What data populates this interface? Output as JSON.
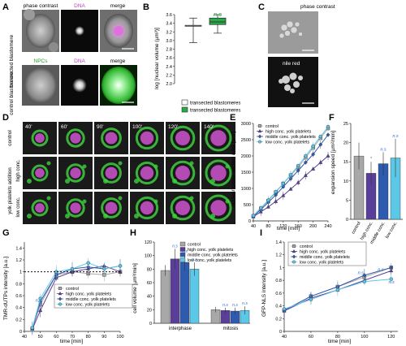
{
  "panel_letters": [
    "A",
    "B",
    "C",
    "D",
    "E",
    "F",
    "G",
    "H",
    "I"
  ],
  "colors": {
    "control": "#a8a8a8",
    "high": "#5a3f9a",
    "middle": "#2d5bb0",
    "low": "#5bc8e8",
    "green_box": "#2aa84a",
    "dna": "#d055d0",
    "gfp": "#3ecf3e",
    "sig": "#2b6fd0"
  },
  "panelA": {
    "col_headers": [
      "phase contrast",
      "DNA",
      "merge"
    ],
    "row2_headers": [
      "NPCs",
      "DNA",
      "merge"
    ],
    "row_labels": [
      "transected blastomere",
      "control blastomere"
    ]
  },
  "panelB": {
    "sig_label": "n.s",
    "legend": [
      "transected blastomeres",
      "transected blastomeres"
    ]
  },
  "panelC": {
    "labels": [
      "phase contrast",
      "nile red"
    ]
  },
  "panelD": {
    "times": [
      "40'",
      "60'",
      "90'",
      "100'",
      "120'",
      "140'"
    ],
    "row_labels": [
      "control",
      "high conc.",
      "low conc."
    ],
    "group_label": "yolk platelets addition"
  },
  "panelE": {
    "ylabel": "nuclear cross-section area [µm²]",
    "xlabel": "time [min]",
    "legend": [
      "control",
      "high conc. yolk platelets",
      "middle conc. yolk platelets",
      "low conc. yolk platelets"
    ]
  },
  "panelF": {
    "ylabel": "expansion speed [µm²/min]",
    "star": "*"
  },
  "panelG": {
    "ylabel": "TMR-dUTPs intensity [a.u.]",
    "xlabel": "time [min]",
    "legend": [
      "control",
      "high conc. yolk platelets",
      "middle conc. yolk platelets",
      "low conc. yolk platelets"
    ]
  },
  "panelH": {
    "ylabel": "cell volume [µm³/min]",
    "legend": [
      "control",
      "high conc. yolk platelets",
      "middle conc. yolk platelets",
      "low conc. yolk platelets"
    ]
  },
  "panelI": {
    "ylabel": "GFP-NLS intensity [a.u.]",
    "xlabel": "time [min]",
    "legend": [
      "control",
      "high conc. yolk platelets",
      "middle conc. yolk platelets",
      "low conc. yolk platelets"
    ]
  },
  "chart_data": [
    {
      "id": "B",
      "type": "box",
      "ylabel": "log [nuclear volume (µm³)]",
      "ylim": [
        2.0,
        3.6
      ],
      "yticks": [
        2.0,
        2.2,
        2.4,
        2.6,
        2.8,
        3.0,
        3.2,
        3.4,
        3.6
      ],
      "boxes": [
        {
          "min": 2.95,
          "q1": 3.35,
          "median": 3.35,
          "q3": 3.35,
          "max": 3.52
        },
        {
          "min": 3.17,
          "q1": 3.37,
          "median": 3.43,
          "q3": 3.52,
          "max": 3.6
        }
      ]
    },
    {
      "id": "E",
      "type": "line",
      "ylabel": "nuclear cross-section area [µm²]",
      "xlabel": "time [min]",
      "xlim": [
        40,
        240
      ],
      "xticks": [
        40,
        80,
        120,
        160,
        200,
        240
      ],
      "ylim": [
        0,
        3000
      ],
      "yticks": [
        0,
        500,
        1000,
        1500,
        2000,
        2500,
        3000
      ],
      "x": [
        40,
        60,
        80,
        100,
        120,
        140,
        160,
        180,
        200,
        220,
        240
      ],
      "series": [
        {
          "name": "control",
          "values": [
            150,
            380,
            620,
            880,
            1150,
            1400,
            1650,
            1950,
            2250,
            2550,
            2850
          ]
        },
        {
          "name": "high conc. yolk platelets",
          "values": [
            130,
            280,
            430,
            600,
            780,
            980,
            1180,
            1400,
            1600,
            1800,
            2000
          ]
        },
        {
          "name": "middle conc. yolk platelets",
          "values": [
            140,
            350,
            570,
            800,
            1050,
            1300,
            1550,
            1800,
            2050,
            2350,
            2650
          ]
        },
        {
          "name": "low conc. yolk platelets",
          "values": [
            160,
            400,
            640,
            900,
            1150,
            1420,
            1700,
            2000,
            2300,
            2600,
            2900
          ]
        }
      ]
    },
    {
      "id": "F",
      "type": "bar",
      "ylabel": "expansion speed [µm²/min]",
      "ylim": [
        0,
        25
      ],
      "yticks": [
        0,
        5,
        10,
        15,
        20,
        25
      ],
      "categories": [
        "control",
        "high conc.",
        "middle conc.",
        "low conc."
      ],
      "values": [
        16.5,
        12,
        14.5,
        16
      ],
      "errors": [
        3.5,
        3,
        3,
        5
      ],
      "labels": [
        "",
        "*",
        "n.s",
        "n.s"
      ]
    },
    {
      "id": "G",
      "type": "line",
      "ylabel": "TMR-dUTPs intensity [a.u.]",
      "xlabel": "time [min]",
      "xlim": [
        40,
        100
      ],
      "xticks": [
        40,
        50,
        60,
        70,
        80,
        90,
        100
      ],
      "ylim": [
        0,
        1.5
      ],
      "yticks": [
        0,
        0.2,
        0.4,
        0.6,
        0.8,
        1.0,
        1.2,
        1.4
      ],
      "x": [
        45,
        50,
        60,
        70,
        80,
        90,
        100
      ],
      "series": [
        {
          "name": "control",
          "values": [
            0.05,
            0.45,
            0.95,
            1.0,
            0.97,
            0.95,
            1.0
          ]
        },
        {
          "name": "high conc. yolk platelets",
          "values": [
            0.04,
            0.35,
            0.9,
            1.0,
            1.05,
            1.1,
            1.0
          ]
        },
        {
          "name": "middle conc. yolk platelets",
          "values": [
            0.05,
            0.5,
            0.95,
            1.05,
            1.08,
            1.05,
            1.1
          ]
        },
        {
          "name": "low conc. yolk platelets",
          "values": [
            0.06,
            0.55,
            1.0,
            1.05,
            1.15,
            1.05,
            1.1
          ]
        }
      ],
      "annotations": [
        "n.s"
      ]
    },
    {
      "id": "H",
      "type": "bar",
      "ylabel": "cell volume [µm³/min]",
      "ylim": [
        0,
        120
      ],
      "yticks": [
        0,
        20,
        40,
        60,
        80,
        100,
        120
      ],
      "groups": [
        "interphase",
        "mitosis"
      ],
      "categories": [
        "control",
        "high conc.",
        "middle conc.",
        "low conc."
      ],
      "values": [
        [
          78,
          95,
          90,
          80
        ],
        [
          20,
          19,
          18,
          19
        ]
      ],
      "errors": [
        [
          8,
          15,
          12,
          10
        ],
        [
          4,
          4,
          5,
          6
        ]
      ],
      "labels": [
        [
          "",
          "n.s",
          "n.s",
          "n.s"
        ],
        [
          "",
          "n.s",
          "n.s",
          "n.s"
        ]
      ]
    },
    {
      "id": "I",
      "type": "line",
      "ylabel": "GFP-NLS intensity [a.u.]",
      "xlabel": "time [min]",
      "xlim": [
        40,
        125
      ],
      "xticks": [
        40,
        60,
        80,
        100,
        120
      ],
      "ylim": [
        0,
        1.4
      ],
      "yticks": [
        0,
        0.2,
        0.4,
        0.6,
        0.8,
        1.0,
        1.2,
        1.4
      ],
      "x": [
        40,
        60,
        80,
        100,
        120
      ],
      "series": [
        {
          "name": "control",
          "values": [
            0.33,
            0.55,
            0.7,
            0.85,
            1.0
          ]
        },
        {
          "name": "high conc. yolk platelets",
          "values": [
            0.32,
            0.52,
            0.65,
            0.8,
            0.95
          ]
        },
        {
          "name": "middle conc. yolk platelets",
          "values": [
            0.33,
            0.55,
            0.7,
            0.88,
            1.0
          ]
        },
        {
          "name": "low conc. yolk platelets",
          "values": [
            0.35,
            0.5,
            0.65,
            0.78,
            0.82
          ]
        }
      ],
      "annotations": [
        "n.s",
        "n.s",
        "n.s"
      ]
    }
  ]
}
